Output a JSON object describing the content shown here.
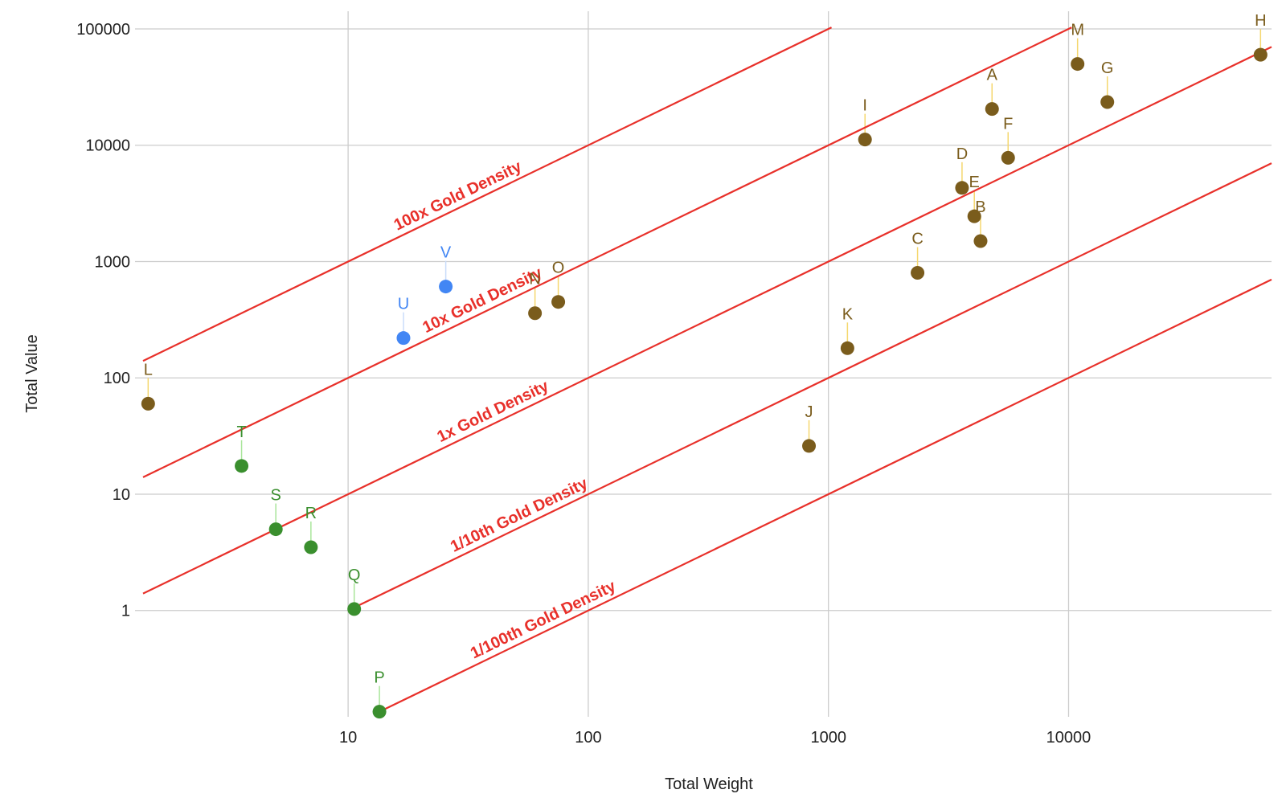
{
  "chart_data": {
    "type": "scatter",
    "title": "",
    "xlabel": "Total Weight",
    "ylabel": "Total Value",
    "x_scale": "log",
    "y_scale": "log",
    "xlim": [
      1.4,
      70000
    ],
    "ylim": [
      0.13,
      100000
    ],
    "grid": true,
    "x_ticks": [
      {
        "value": 10,
        "label": "10"
      },
      {
        "value": 100,
        "label": "100"
      },
      {
        "value": 1000,
        "label": "1000"
      },
      {
        "value": 10000,
        "label": "10000"
      }
    ],
    "y_ticks": [
      {
        "value": 1,
        "label": "1"
      },
      {
        "value": 10,
        "label": "10"
      },
      {
        "value": 100,
        "label": "100"
      },
      {
        "value": 1000,
        "label": "1000"
      },
      {
        "value": 10000,
        "label": "10000"
      },
      {
        "value": 100000,
        "label": "100000"
      }
    ],
    "colors": {
      "brown": "#7a5c1c",
      "green": "#3a8f2e",
      "blue": "#4286f4",
      "brown_text": "#7a5c1c",
      "green_text": "#3a8f2e",
      "blue_text": "#4286f4",
      "brown_stem": "#f5d76e",
      "green_stem": "#a9e59a",
      "blue_stem": "#c9dcfa",
      "reference": "#e8302a"
    },
    "reference_lines": [
      {
        "label": "100x Gold Density",
        "ratio": 100,
        "x_end": 1030
      },
      {
        "label": "10x Gold Density",
        "ratio": 10,
        "x_end": 10300
      },
      {
        "label": "1x Gold Density",
        "ratio": 1,
        "x_end": 70000
      },
      {
        "label": "1/10th Gold Density",
        "ratio": 0.1,
        "x_start": 10.5,
        "x_end": 70000
      },
      {
        "label": "1/100th Gold Density",
        "ratio": 0.01,
        "x_start": 14,
        "x_end": 70000
      }
    ],
    "points": [
      {
        "label": "A",
        "x": 4800,
        "y": 20500,
        "group": "brown"
      },
      {
        "label": "B",
        "x": 4300,
        "y": 1500,
        "group": "brown"
      },
      {
        "label": "C",
        "x": 2350,
        "y": 800,
        "group": "brown"
      },
      {
        "label": "D",
        "x": 3600,
        "y": 4300,
        "group": "brown"
      },
      {
        "label": "E",
        "x": 4050,
        "y": 2450,
        "group": "brown"
      },
      {
        "label": "F",
        "x": 5600,
        "y": 7800,
        "group": "brown"
      },
      {
        "label": "G",
        "x": 14500,
        "y": 23500,
        "group": "brown"
      },
      {
        "label": "H",
        "x": 63000,
        "y": 60000,
        "group": "brown"
      },
      {
        "label": "I",
        "x": 1420,
        "y": 11200,
        "group": "brown"
      },
      {
        "label": "J",
        "x": 830,
        "y": 26,
        "group": "brown"
      },
      {
        "label": "K",
        "x": 1200,
        "y": 180,
        "group": "brown"
      },
      {
        "label": "L",
        "x": 1.47,
        "y": 60,
        "group": "brown"
      },
      {
        "label": "M",
        "x": 10900,
        "y": 50000,
        "group": "brown"
      },
      {
        "label": "N",
        "x": 60,
        "y": 360,
        "group": "brown"
      },
      {
        "label": "O",
        "x": 75,
        "y": 450,
        "group": "brown"
      },
      {
        "label": "P",
        "x": 13.5,
        "y": 0.135,
        "group": "green"
      },
      {
        "label": "Q",
        "x": 10.6,
        "y": 1.03,
        "group": "green"
      },
      {
        "label": "R",
        "x": 7,
        "y": 3.5,
        "group": "green"
      },
      {
        "label": "S",
        "x": 5,
        "y": 5,
        "group": "green"
      },
      {
        "label": "T",
        "x": 3.6,
        "y": 17.5,
        "group": "green"
      },
      {
        "label": "U",
        "x": 17,
        "y": 220,
        "group": "blue"
      },
      {
        "label": "V",
        "x": 25.5,
        "y": 610,
        "group": "blue"
      }
    ]
  }
}
